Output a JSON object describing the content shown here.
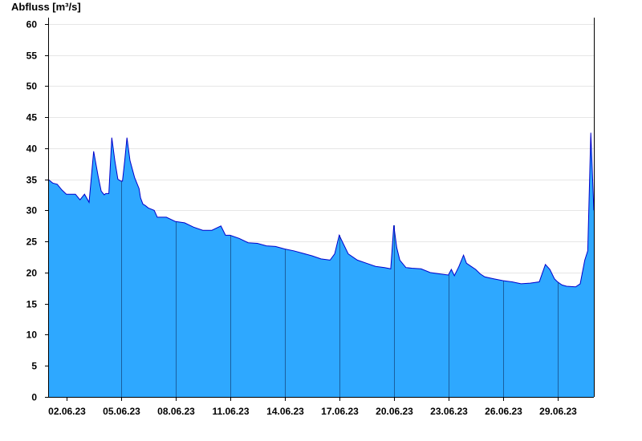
{
  "chart_data": {
    "type": "area",
    "ylabel": "Abfluss [m³/s]",
    "ylim": [
      0,
      61
    ],
    "yticks": [
      0,
      5,
      10,
      15,
      20,
      25,
      30,
      35,
      40,
      45,
      50,
      55,
      60
    ],
    "xlim": [
      "01.06.23 00:00",
      "01.07.23 00:00"
    ],
    "xticks": [
      "02.06.23",
      "05.06.23",
      "08.06.23",
      "11.06.23",
      "14.06.23",
      "17.06.23",
      "20.06.23",
      "23.06.23",
      "26.06.23",
      "29.06.23"
    ],
    "grid": "horizontal",
    "colors": {
      "fill": "#2ea8ff",
      "line": "#0000cc",
      "grid": "#e6e6e6",
      "day_lines": "#1a5fa0"
    },
    "series": [
      {
        "x": [
          "01.06.23 00:00",
          "01.06.23 06:00",
          "01.06.23 12:00",
          "01.06.23 18:00",
          "02.06.23 00:00",
          "02.06.23 06:00",
          "02.06.23 12:00",
          "02.06.23 18:00",
          "03.06.23 00:00",
          "03.06.23 06:00",
          "03.06.23 12:00",
          "03.06.23 18:00",
          "03.06.23 22:00",
          "04.06.23 00:00",
          "04.06.23 02:00",
          "04.06.23 04:00",
          "04.06.23 08:00",
          "04.06.23 12:00",
          "04.06.23 16:00",
          "04.06.23 20:00",
          "05.06.23 00:00",
          "05.06.23 02:00",
          "05.06.23 05:00",
          "05.06.23 08:00",
          "05.06.23 12:00",
          "05.06.23 18:00",
          "06.06.23 00:00",
          "06.06.23 02:00",
          "06.06.23 05:00",
          "06.06.23 08:00",
          "06.06.23 12:00",
          "06.06.23 16:00",
          "06.06.23 20:00",
          "07.06.23 00:00",
          "07.06.23 06:00",
          "07.06.23 12:00",
          "08.06.23 00:00",
          "08.06.23 12:00",
          "09.06.23 00:00",
          "09.06.23 12:00",
          "10.06.23 00:00",
          "10.06.23 12:00",
          "10.06.23 18:00",
          "11.06.23 00:00",
          "11.06.23 12:00",
          "12.06.23 00:00",
          "12.06.23 12:00",
          "13.06.23 00:00",
          "13.06.23 12:00",
          "14.06.23 00:00",
          "14.06.23 12:00",
          "15.06.23 00:00",
          "15.06.23 12:00",
          "16.06.23 00:00",
          "16.06.23 12:00",
          "16.06.23 18:00",
          "17.06.23 00:00",
          "17.06.23 06:00",
          "17.06.23 12:00",
          "18.06.23 00:00",
          "18.06.23 12:00",
          "19.06.23 00:00",
          "19.06.23 12:00",
          "19.06.23 20:00",
          "20.06.23 00:00",
          "20.06.23 04:00",
          "20.06.23 08:00",
          "20.06.23 16:00",
          "21.06.23 00:00",
          "21.06.23 12:00",
          "22.06.23 00:00",
          "22.06.23 12:00",
          "23.06.23 00:00",
          "23.06.23 04:00",
          "23.06.23 08:00",
          "23.06.23 14:00",
          "23.06.23 20:00",
          "24.06.23 00:00",
          "24.06.23 06:00",
          "24.06.23 12:00",
          "24.06.23 18:00",
          "25.06.23 00:00",
          "25.06.23 12:00",
          "26.06.23 00:00",
          "26.06.23 12:00",
          "27.06.23 00:00",
          "27.06.23 12:00",
          "28.06.23 00:00",
          "28.06.23 08:00",
          "28.06.23 14:00",
          "28.06.23 20:00",
          "29.06.23 00:00",
          "29.06.23 06:00",
          "29.06.23 12:00",
          "30.06.23 00:00",
          "30.06.23 06:00",
          "30.06.23 12:00",
          "30.06.23 16:00",
          "30.06.23 20:00",
          "01.07.23 00:00"
        ],
        "y": [
          35.0,
          34.4,
          34.2,
          33.3,
          32.6,
          32.6,
          32.6,
          31.7,
          32.6,
          31.3,
          39.5,
          35.5,
          33.1,
          32.8,
          32.5,
          32.7,
          32.7,
          41.7,
          38.0,
          35.0,
          34.7,
          34.7,
          38.0,
          41.7,
          38.0,
          35.3,
          33.5,
          32.0,
          31.0,
          30.8,
          30.4,
          30.2,
          30.0,
          28.9,
          28.9,
          28.9,
          28.2,
          28.0,
          27.3,
          26.8,
          26.8,
          27.5,
          26.0,
          26.0,
          25.5,
          24.8,
          24.7,
          24.3,
          24.2,
          23.8,
          23.5,
          23.1,
          22.7,
          22.2,
          22.0,
          23.0,
          26.0,
          24.5,
          23.0,
          22.0,
          21.5,
          21.0,
          20.8,
          20.6,
          27.6,
          24.0,
          22.0,
          20.8,
          20.7,
          20.6,
          20.0,
          19.8,
          19.6,
          20.5,
          19.5,
          21.0,
          22.8,
          21.5,
          21.0,
          20.5,
          19.8,
          19.3,
          19.0,
          18.7,
          18.5,
          18.2,
          18.3,
          18.5,
          21.3,
          20.5,
          19.0,
          18.5,
          18.0,
          17.8,
          17.7,
          18.2,
          22.0,
          23.5,
          42.5,
          30.0
        ]
      }
    ]
  }
}
